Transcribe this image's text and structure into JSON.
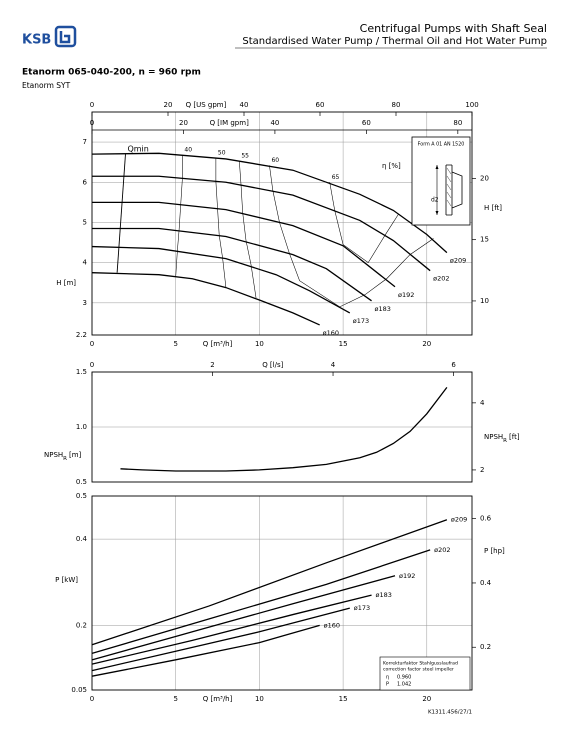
{
  "header": {
    "brand": "KSB",
    "title": "Centrifugal Pumps with Shaft Seal",
    "subtitle": "Standardised Water Pump / Thermal Oil and Hot Water Pump",
    "model": "Etanorm 065-040-200, n = 960 rpm",
    "series": "Etanorm SYT"
  },
  "chart_data": [
    {
      "type": "line",
      "ylabel": "H [m]",
      "y2label": "H [ft]",
      "xlabel": "Q [m³/h]",
      "xlim": [
        0,
        22.7
      ],
      "xticks": [
        0,
        5,
        10,
        15,
        20
      ],
      "ylim": [
        2.2,
        7.3
      ],
      "yticks": [
        2.2,
        3,
        4,
        5,
        6,
        7
      ],
      "y2lim": [
        7.22,
        23.95
      ],
      "y2ticks": [
        10,
        15,
        20
      ],
      "grid": true,
      "top_axes": [
        {
          "label": "Q [US gpm]",
          "lim": [
            0,
            100
          ],
          "ticks": [
            0,
            20,
            40,
            60,
            80,
            100
          ]
        },
        {
          "label": "Q [IM gpm]",
          "lim": [
            0,
            83.1
          ],
          "ticks": [
            0,
            20,
            40,
            60,
            80
          ]
        }
      ],
      "series": [
        {
          "name": "ø209",
          "color": "#000000",
          "x": [
            0,
            4,
            8,
            12,
            16,
            18,
            20,
            21.2
          ],
          "values": [
            6.7,
            6.72,
            6.58,
            6.3,
            5.7,
            5.3,
            4.7,
            4.25
          ]
        },
        {
          "name": "ø202",
          "color": "#000000",
          "x": [
            0,
            4,
            8,
            12,
            16,
            18,
            20.2
          ],
          "values": [
            6.15,
            6.15,
            6.0,
            5.68,
            5.05,
            4.55,
            3.8
          ]
        },
        {
          "name": "ø192",
          "color": "#000000",
          "x": [
            0,
            4,
            8,
            12,
            15,
            18.1
          ],
          "values": [
            5.5,
            5.5,
            5.32,
            4.92,
            4.42,
            3.4
          ]
        },
        {
          "name": "ø183",
          "color": "#000000",
          "x": [
            0,
            4,
            8,
            12,
            14,
            16.7
          ],
          "values": [
            4.85,
            4.85,
            4.65,
            4.2,
            3.85,
            3.05
          ]
        },
        {
          "name": "ø173",
          "color": "#000000",
          "x": [
            0,
            4,
            8,
            11,
            13,
            15.4
          ],
          "values": [
            4.4,
            4.35,
            4.1,
            3.7,
            3.3,
            2.75
          ]
        },
        {
          "name": "ø160",
          "color": "#000000",
          "x": [
            0,
            4,
            6,
            8,
            10,
            12,
            13.6
          ],
          "values": [
            3.75,
            3.7,
            3.6,
            3.38,
            3.07,
            2.75,
            2.45
          ]
        }
      ],
      "efficiency_label": "η [%]",
      "efficiency": [
        {
          "level": 40,
          "x": [
            5.4,
            5.4,
            5.3,
            5.2,
            5.1,
            5.0
          ],
          "values": [
            6.68,
            6.1,
            5.45,
            4.8,
            4.3,
            3.65
          ]
        },
        {
          "level": 50,
          "x": [
            7.4,
            7.4,
            7.5,
            7.6,
            7.8,
            8.0
          ],
          "values": [
            6.6,
            6.02,
            5.35,
            4.68,
            4.12,
            3.38
          ]
        },
        {
          "level": 55,
          "x": [
            8.8,
            8.9,
            9.0,
            9.2,
            9.5,
            9.8
          ],
          "values": [
            6.53,
            5.95,
            5.25,
            4.55,
            3.95,
            3.12
          ]
        },
        {
          "level": 60,
          "x": [
            10.6,
            10.8,
            11.2,
            11.8,
            12.4,
            14.8,
            16.3,
            17.6,
            19.0,
            20.4
          ],
          "values": [
            6.42,
            5.8,
            5.0,
            4.22,
            3.55,
            2.9,
            3.2,
            3.6,
            4.2,
            4.6
          ]
        },
        {
          "level": 65,
          "x": [
            14.2,
            14.5,
            15.0,
            16.5,
            17.5,
            18.3
          ],
          "values": [
            6.0,
            5.3,
            4.45,
            4.0,
            4.68,
            5.2
          ]
        }
      ],
      "qmin": {
        "label": "Qmin",
        "x": [
          1.5,
          2.0
        ],
        "values": [
          3.75,
          6.7
        ]
      },
      "inset": {
        "title": "Form A 01 AN 1520",
        "label": "d2"
      }
    },
    {
      "type": "line",
      "ylabel": "NPSH",
      "ylabel_sub": "R",
      "ylabel_unit": "[m]",
      "y2label": "NPSH",
      "y2label_sub": "R",
      "y2label_unit": "[ft]",
      "xlim": [
        0,
        22.7
      ],
      "ylim": [
        0.5,
        1.5
      ],
      "yticks": [
        0.5,
        {
          "value": 1,
          "label": "1.0"
        },
        1.5
      ],
      "y2lim": [
        1.64,
        4.92
      ],
      "y2ticks": [
        2,
        4
      ],
      "grid": true,
      "top_axes": [
        {
          "label": "Q [l/s]",
          "lim": [
            0,
            6.306
          ],
          "ticks": [
            0,
            2,
            4,
            6
          ]
        }
      ],
      "series": [
        {
          "color": "#000000",
          "x": [
            1.7,
            3,
            5,
            8,
            10,
            12,
            14,
            16,
            17,
            18,
            19,
            20,
            21.2
          ],
          "values": [
            0.62,
            0.61,
            0.6,
            0.6,
            0.61,
            0.63,
            0.66,
            0.72,
            0.77,
            0.85,
            0.96,
            1.12,
            1.36
          ]
        }
      ]
    },
    {
      "type": "line",
      "ylabel": "P [kW]",
      "y2label": "P [hp]",
      "xlabel": "Q [m³/h]",
      "xlim": [
        0,
        22.7
      ],
      "xticks": [
        0,
        5,
        10,
        15,
        20
      ],
      "ylim": [
        0.05,
        0.5
      ],
      "yticks": [
        0.05,
        0.2,
        0.4,
        0.5
      ],
      "y2lim": [
        0.067,
        0.6705
      ],
      "y2ticks": [
        0.2,
        0.4,
        0.6
      ],
      "grid": true,
      "series": [
        {
          "name": "ø209",
          "color": "#000000",
          "x": [
            0,
            7,
            14,
            21.2
          ],
          "values": [
            0.155,
            0.245,
            0.345,
            0.445
          ]
        },
        {
          "name": "ø202",
          "color": "#000000",
          "x": [
            0,
            7,
            14,
            20.2
          ],
          "values": [
            0.135,
            0.215,
            0.295,
            0.375
          ]
        },
        {
          "name": "ø192",
          "color": "#000000",
          "x": [
            0,
            6,
            12,
            18.1
          ],
          "values": [
            0.12,
            0.185,
            0.25,
            0.315
          ]
        },
        {
          "name": "ø183",
          "color": "#000000",
          "x": [
            0,
            6,
            12,
            16.7
          ],
          "values": [
            0.11,
            0.165,
            0.225,
            0.27
          ]
        },
        {
          "name": "ø173",
          "color": "#000000",
          "x": [
            0,
            5,
            10,
            15.4
          ],
          "values": [
            0.095,
            0.14,
            0.185,
            0.24
          ]
        },
        {
          "name": "ø160",
          "color": "#000000",
          "x": [
            0,
            5,
            10,
            13.6
          ],
          "values": [
            0.082,
            0.12,
            0.16,
            0.2
          ]
        }
      ],
      "correction": {
        "title": "Korrekturfaktor Stahlgusslaufrad",
        "subtitle": "correction factor steel impeller",
        "rows": [
          [
            "η",
            "0.960"
          ],
          [
            "P",
            "1.042"
          ]
        ]
      }
    }
  ],
  "footer": "K1311.456/27/1"
}
